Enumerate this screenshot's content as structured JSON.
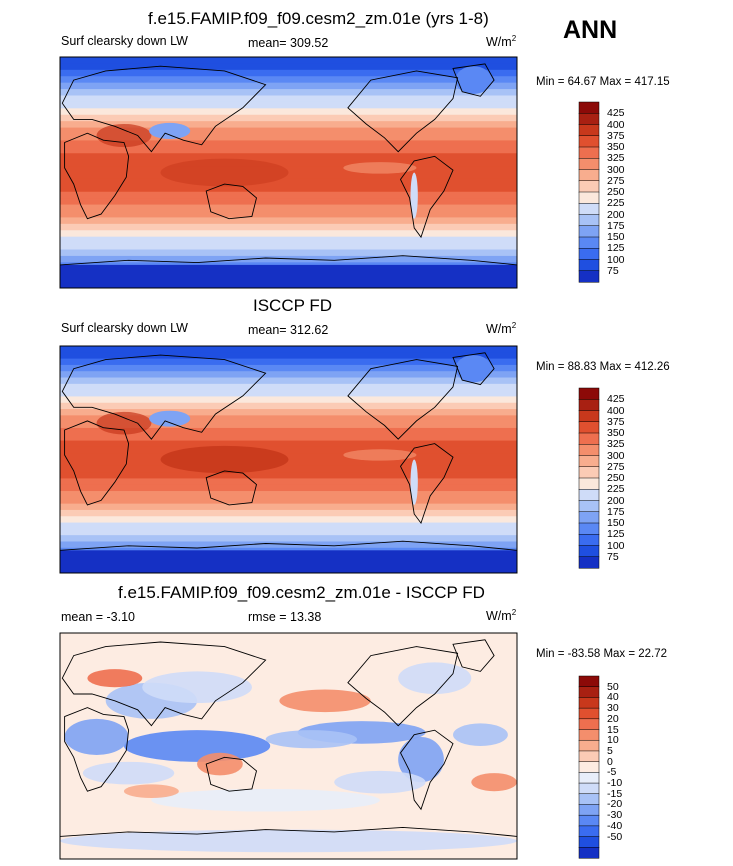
{
  "season": "ANN",
  "colors": {
    "abs_scale": [
      "#0a1a8c",
      "#1530c4",
      "#1f4fe0",
      "#3a6cf0",
      "#5a88f4",
      "#7ea3f4",
      "#a8c2f6",
      "#cfdcf8",
      "#fbe8dc",
      "#fbcbb5",
      "#f8ad8e",
      "#f48e6c",
      "#ee6f4f",
      "#e0502f",
      "#c8381c",
      "#a82012",
      "#8c0a08"
    ],
    "diff_scale": [
      "#0a1a8c",
      "#1530c4",
      "#1f4fe0",
      "#3a6cf0",
      "#5a88f4",
      "#7ea3f4",
      "#a8c2f6",
      "#cfdcf8",
      "#e8eefa",
      "#fdece2",
      "#fbcbb5",
      "#f8ad8e",
      "#f48e6c",
      "#ee6f4f",
      "#e0502f",
      "#c8381c",
      "#a82012",
      "#8c0a08"
    ],
    "land": "#000000"
  },
  "chart_data": [
    {
      "type": "heatmap",
      "title": "f.e15.FAMIP.f09_f09.cesm2_zm.01e (yrs 1-8)",
      "left_label": "Surf clearsky down LW",
      "center_label": "mean= 309.52",
      "units": "W/m",
      "units_sup": "2",
      "minmax": "Min =  64.67 Max = 417.15",
      "colorbar_levels": [
        "425",
        "400",
        "375",
        "350",
        "325",
        "300",
        "275",
        "250",
        "225",
        "200",
        "175",
        "150",
        "125",
        "100",
        "75"
      ],
      "stats": {
        "mean": 309.52,
        "min": 64.67,
        "max": 417.15
      }
    },
    {
      "type": "heatmap",
      "title": "ISCCP FD",
      "left_label": "Surf clearsky down LW",
      "center_label": "mean= 312.62",
      "units": "W/m",
      "units_sup": "2",
      "minmax": "Min =  88.83 Max = 412.26",
      "colorbar_levels": [
        "425",
        "400",
        "375",
        "350",
        "325",
        "300",
        "275",
        "250",
        "225",
        "200",
        "175",
        "150",
        "125",
        "100",
        "75"
      ],
      "stats": {
        "mean": 312.62,
        "min": 88.83,
        "max": 412.26
      }
    },
    {
      "type": "heatmap",
      "title": "f.e15.FAMIP.f09_f09.cesm2_zm.01e - ISCCP FD",
      "left_label": "mean =  -3.10",
      "center_label": "rmse =  13.38",
      "units": "W/m",
      "units_sup": "2",
      "minmax": "Min = -83.58 Max =  22.72",
      "colorbar_levels": [
        "50",
        "40",
        "30",
        "20",
        "15",
        "10",
        "5",
        "0",
        "-5",
        "-10",
        "-15",
        "-20",
        "-30",
        "-40",
        "-50"
      ],
      "stats": {
        "mean": -3.1,
        "rmse": 13.38,
        "min": -83.58,
        "max": 22.72
      }
    }
  ]
}
